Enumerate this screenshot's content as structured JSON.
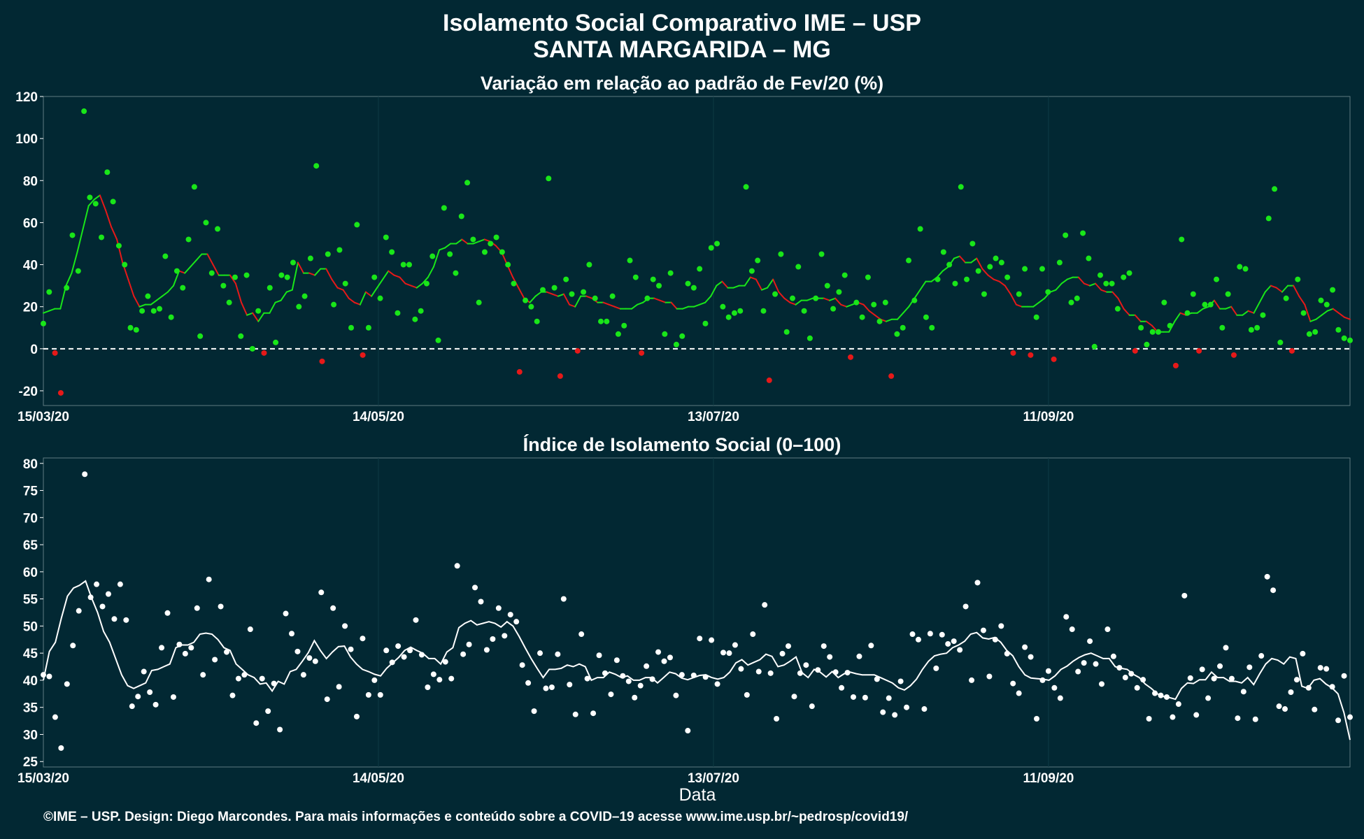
{
  "title": "Isolamento Social Comparativo IME – USP",
  "subtitle": "SANTA MARGARIDA – MG",
  "footer": "©IME – USP. Design: Diego Marcondes. Para mais informações e conteúdo sobre a COVID–19 acesse www.ime.usp.br/~pedrosp/covid19/",
  "colors": {
    "background": "#022833",
    "positive": "#19e619",
    "negative": "#e61919",
    "index": "#ffffff"
  },
  "chart_data": [
    {
      "type": "scatter",
      "title": "Variação em relação ao padrão de Fev/20 (%)",
      "xlabel": "",
      "ylabel": "",
      "x_ticks": [
        "15/03/20",
        "14/05/20",
        "13/07/20",
        "11/09/20"
      ],
      "x_range": [
        "15/03/20",
        "04/11/20"
      ],
      "ylim": [
        -27,
        120
      ],
      "y_ticks": [
        -20,
        0,
        20,
        40,
        60,
        80,
        100,
        120
      ],
      "reference_line": 0,
      "grid": true,
      "series": [
        {
          "role": "daily points",
          "values": [
            12,
            27,
            -2,
            -21,
            29,
            54,
            37,
            113,
            72,
            69,
            53,
            84,
            70,
            49,
            40,
            10,
            9,
            18,
            25,
            18,
            19,
            44,
            15,
            37,
            29,
            52,
            77,
            6,
            60,
            36,
            57,
            30,
            22,
            34,
            6,
            35,
            0,
            18,
            -2,
            29,
            3,
            35,
            34,
            41,
            20,
            25,
            43,
            87,
            -6,
            45,
            21,
            47,
            31,
            10,
            59,
            -3,
            10,
            34,
            24,
            53,
            46,
            17,
            40,
            40,
            14,
            18,
            31,
            44,
            4,
            67,
            45,
            36,
            63,
            79,
            52,
            22,
            46,
            50,
            53,
            46,
            40,
            31,
            -11,
            23,
            20,
            13,
            28,
            81,
            29,
            -13,
            33,
            26,
            -1,
            27,
            40,
            24,
            13,
            13,
            25,
            7,
            11,
            42,
            34,
            -2,
            24,
            33,
            30,
            7,
            36,
            2,
            6,
            31,
            29,
            38,
            12,
            48,
            50,
            20,
            15,
            17,
            18,
            77,
            37,
            42,
            18,
            -15,
            26,
            45,
            8,
            24,
            39,
            18,
            5,
            24,
            45,
            30,
            19,
            27,
            35,
            -4,
            22,
            15,
            34,
            21,
            13,
            22,
            -13,
            7,
            10,
            42,
            23,
            57,
            15,
            10,
            33,
            46,
            40,
            31,
            77,
            33,
            50,
            37,
            26,
            39,
            43,
            41,
            34,
            -2,
            26,
            38,
            -3,
            15,
            38,
            27,
            -5,
            41,
            54,
            22,
            24,
            55,
            43,
            1,
            35,
            31,
            31,
            19,
            34,
            36,
            -1,
            10,
            2,
            8,
            8,
            22,
            11,
            -8,
            52,
            17,
            26,
            -1,
            21,
            21,
            33,
            10,
            26,
            -3,
            39,
            38,
            9,
            10,
            16,
            62,
            76,
            3,
            24,
            -1,
            33,
            17,
            7,
            8,
            23,
            21,
            28,
            9,
            5,
            4
          ]
        },
        {
          "role": "7-day moving average",
          "values": [
            17,
            18,
            19,
            19,
            30,
            36,
            46,
            57,
            68,
            71,
            73,
            66,
            58,
            52,
            41,
            33,
            25,
            20,
            21,
            21,
            23,
            25,
            27,
            30,
            37,
            36,
            39,
            42,
            45,
            45,
            40,
            35,
            35,
            35,
            31,
            22,
            16,
            17,
            13,
            17,
            17,
            22,
            23,
            27,
            28,
            41,
            36,
            36,
            35,
            38,
            38,
            33,
            29,
            28,
            24,
            22,
            21,
            27,
            25,
            29,
            33,
            37,
            35,
            34,
            31,
            30,
            29,
            31,
            34,
            39,
            47,
            48,
            50,
            50,
            52,
            50,
            50,
            51,
            52,
            51,
            49,
            46,
            40,
            34,
            29,
            24,
            22,
            25,
            27,
            27,
            26,
            25,
            26,
            21,
            20,
            25,
            25,
            24,
            22,
            22,
            21,
            20,
            19,
            19,
            19,
            21,
            22,
            24,
            24,
            23,
            22,
            22,
            19,
            19,
            20,
            20,
            21,
            22,
            25,
            30,
            32,
            29,
            29,
            30,
            30,
            34,
            33,
            28,
            29,
            33,
            27,
            24,
            22,
            21,
            23,
            23,
            24,
            24,
            24,
            23,
            24,
            21,
            20,
            21,
            22,
            21,
            18,
            16,
            14,
            13,
            14,
            14,
            17,
            20,
            24,
            28,
            32,
            32,
            34,
            37,
            39,
            43,
            44,
            41,
            41,
            43,
            38,
            35,
            33,
            32,
            30,
            26,
            21,
            20,
            20,
            20,
            22,
            24,
            27,
            28,
            31,
            33,
            34,
            34,
            31,
            30,
            31,
            28,
            27,
            27,
            24,
            19,
            16,
            16,
            13,
            13,
            11,
            8,
            8,
            8,
            13,
            17,
            16,
            17,
            17,
            19,
            20,
            23,
            19,
            19,
            20,
            16,
            16,
            18,
            17,
            22,
            27,
            30,
            29,
            27,
            30,
            30,
            25,
            21,
            13,
            14,
            16,
            18,
            19,
            17,
            15,
            14
          ]
        }
      ]
    },
    {
      "type": "scatter",
      "title": "Índice de Isolamento Social (0–100)",
      "xlabel": "Data",
      "ylabel": "",
      "x_ticks": [
        "15/03/20",
        "14/05/20",
        "13/07/20",
        "11/09/20"
      ],
      "x_range": [
        "15/03/20",
        "04/11/20"
      ],
      "ylim": [
        24,
        81
      ],
      "y_ticks": [
        25,
        30,
        35,
        40,
        45,
        50,
        55,
        60,
        65,
        70,
        75,
        80
      ],
      "grid": true,
      "series": [
        {
          "role": "daily points",
          "values": [
            41,
            40.7,
            33.2,
            27.5,
            39.3,
            46.4,
            52.8,
            78,
            55.3,
            57.7,
            53.6,
            55.9,
            51.3,
            57.7,
            51.1,
            35.2,
            37,
            41.6,
            37.8,
            35.5,
            46,
            52.4,
            36.9,
            46.6,
            44.9,
            46,
            53.3,
            41,
            58.6,
            43.8,
            53.6,
            45.2,
            37.2,
            40.3,
            41,
            49.4,
            32.1,
            40.3,
            34.3,
            39.4,
            30.9,
            52.3,
            48.6,
            45.3,
            41,
            44.1,
            43.5,
            56.2,
            36.5,
            53.3,
            38.8,
            50,
            45.7,
            33.3,
            47.7,
            37.3,
            40,
            37.3,
            45.5,
            43.3,
            46.3,
            44.3,
            45.5,
            51.1,
            44.7,
            38.7,
            41.1,
            40.1,
            43.4,
            40.3,
            61.1,
            44.8,
            46.6,
            57.1,
            54.5,
            45.6,
            47.6,
            53.3,
            48.2,
            52.1,
            50.8,
            42.8,
            39.5,
            34.3,
            45,
            38.5,
            38.7,
            44.8,
            55,
            39.2,
            33.7,
            48.5,
            40.3,
            33.9,
            44.6,
            41.3,
            37.4,
            43.7,
            40.8,
            39.8,
            36.8,
            39,
            42.6,
            40.2,
            45.2,
            43.5,
            44.2,
            37.2,
            41,
            30.7,
            40.9,
            47.7,
            40.6,
            47.4,
            39.3,
            45.1,
            45,
            46.5,
            42.1,
            37.3,
            48.5,
            41.6,
            53.9,
            41.3,
            32.9,
            44.9,
            46.3,
            37,
            41.3,
            42.8,
            35.2,
            41.9,
            46.3,
            44.3,
            41.5,
            38.6,
            41.4,
            36.9,
            44.4,
            36.8,
            46.4,
            40.2,
            34.1,
            36.7,
            33.6,
            39.8,
            35,
            48.5,
            47.5,
            34.7,
            48.6,
            42.2,
            48.4,
            46.7,
            47.2,
            45.6,
            53.6,
            40,
            58,
            49.2,
            40.7,
            47.5,
            50,
            44.9,
            39.4,
            37.6,
            46.1,
            44.3,
            32.9,
            40,
            41.7,
            38.6,
            36.7,
            51.7,
            49.4,
            41.6,
            43.2,
            47.2,
            43,
            39.3,
            49.4,
            44.4,
            42.3,
            40.5,
            41.2,
            38.6,
            40.1,
            32.9,
            37.6,
            37.2,
            36.9,
            33.2,
            35.6,
            55.6,
            40.4,
            33.6,
            42,
            36.7,
            40.3,
            42.6,
            46,
            40.3,
            33,
            37.9,
            42.4,
            32.8,
            44.5,
            59.1,
            56.6,
            35.2,
            34.7,
            37.8,
            40.1,
            44.9,
            38.6,
            34.6,
            42.3,
            42.1,
            38.8,
            32.6,
            40.8,
            33.2
          ]
        },
        {
          "role": "7-day moving average",
          "values": [
            40,
            45.3,
            47,
            51.5,
            55.5,
            57,
            57.5,
            58.3,
            55.2,
            52.5,
            49,
            47,
            44,
            41,
            39,
            38.5,
            39,
            39.5,
            41.8,
            42,
            42.5,
            43,
            46,
            46.5,
            46.5,
            47,
            48.5,
            48.7,
            48.5,
            47.5,
            46,
            45.5,
            43,
            42,
            41,
            40.5,
            39.3,
            39.5,
            38,
            39.8,
            39.3,
            41.6,
            42,
            43.5,
            45.1,
            47.3,
            45.5,
            44,
            45.2,
            46.2,
            46.3,
            44.3,
            43,
            42,
            41.6,
            41.1,
            40.8,
            42.2,
            43.2,
            44.2,
            45.5,
            46.1,
            45.5,
            45,
            44,
            44,
            43,
            45.2,
            46,
            49.7,
            50.5,
            51,
            50.2,
            50.5,
            50.8,
            50.5,
            49.8,
            50.8,
            50,
            48.1,
            46,
            44,
            42.2,
            40.5,
            42,
            42,
            42.2,
            42.8,
            42.5,
            43,
            42.5,
            40,
            40.5,
            40.5,
            41.5,
            41.1,
            40.5,
            40.8,
            40,
            40,
            40.5,
            40.5,
            39.5,
            40.5,
            41.5,
            41.2,
            40.4,
            40.1,
            40.5,
            40.9,
            41,
            40.5,
            40.2,
            40.5,
            41.5,
            43.2,
            43.8,
            42.8,
            43.3,
            43.8,
            44.8,
            44.4,
            42.5,
            42.8,
            43.5,
            44.3,
            41.4,
            40.5,
            42,
            41.5,
            40.6,
            41.6,
            40.5,
            41.2,
            41.5,
            41.2,
            41,
            41,
            41,
            40.5,
            40,
            39.5,
            38.6,
            38.2,
            39,
            40.2,
            42,
            43.5,
            44.5,
            44.8,
            45,
            46,
            46.5,
            47.2,
            48.5,
            48.8,
            47.8,
            47.6,
            47.9,
            47,
            45.5,
            44.5,
            42.5,
            41,
            40.4,
            40.3,
            40.2,
            40,
            40.8,
            42,
            42.6,
            43.5,
            44.2,
            44.7,
            45,
            44.5,
            44,
            44,
            42.5,
            42.2,
            42,
            41.1,
            40.5,
            39.3,
            38.5,
            37.5,
            37,
            36.8,
            36.5,
            38.5,
            39.5,
            39.4,
            40.1,
            40.1,
            41.5,
            40.5,
            40.5,
            39.8,
            39.8,
            39.5,
            40.5,
            39.2,
            41.2,
            43,
            44,
            43.7,
            43,
            44.3,
            44,
            38.9,
            38.5,
            40,
            40.3,
            39.3,
            38.6,
            37.5,
            34,
            29
          ]
        }
      ]
    }
  ]
}
